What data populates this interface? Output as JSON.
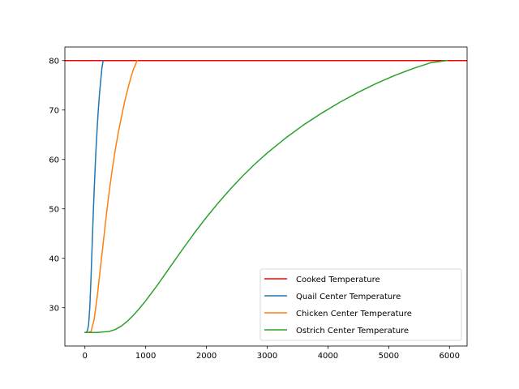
{
  "chart_data": {
    "type": "line",
    "title": "",
    "xlabel": "",
    "ylabel": "",
    "xlim": [
      -330,
      6290
    ],
    "ylim": [
      22.25,
      82.75
    ],
    "xticks": [
      0,
      1000,
      2000,
      3000,
      4000,
      5000,
      6000
    ],
    "yticks": [
      30,
      40,
      50,
      60,
      70,
      80
    ],
    "grid": false,
    "legend_position": "lower right",
    "hlines": [
      {
        "name": "Cooked Temperature",
        "y": 80,
        "color": "#ff0000"
      }
    ],
    "series": [
      {
        "name": "Quail Center Temperature",
        "color": "#1f77b4",
        "x": [
          0,
          20,
          40,
          60,
          80,
          100,
          120,
          140,
          160,
          180,
          200,
          220,
          240,
          260,
          280,
          300
        ],
        "y": [
          25,
          25,
          25.3,
          26.5,
          30,
          36,
          43,
          50,
          56,
          61.5,
          66,
          70,
          73.3,
          76,
          78.5,
          80
        ]
      },
      {
        "name": "Chicken Center Temperature",
        "color": "#ff7f0e",
        "x": [
          0,
          50,
          100,
          150,
          200,
          250,
          300,
          350,
          400,
          450,
          500,
          550,
          600,
          650,
          700,
          750,
          800,
          860
        ],
        "y": [
          25,
          25,
          25.2,
          27.5,
          32,
          37.5,
          43,
          48.5,
          53.5,
          58,
          62,
          65.5,
          68.5,
          71.5,
          74,
          76.3,
          78.3,
          80
        ]
      },
      {
        "name": "Ostrich Center Temperature",
        "color": "#2ca02c",
        "x": [
          0,
          200,
          400,
          500,
          600,
          700,
          800,
          900,
          1000,
          1200,
          1400,
          1600,
          1800,
          2000,
          2200,
          2400,
          2600,
          2800,
          3000,
          3300,
          3600,
          3900,
          4200,
          4500,
          4800,
          5100,
          5400,
          5700,
          5960
        ],
        "y": [
          25,
          25,
          25.2,
          25.6,
          26.3,
          27.3,
          28.5,
          29.9,
          31.4,
          34.7,
          38.2,
          41.7,
          45.1,
          48.3,
          51.3,
          54.1,
          56.7,
          59.1,
          61.3,
          64.3,
          67,
          69.4,
          71.6,
          73.6,
          75.4,
          77,
          78.4,
          79.6,
          80
        ]
      }
    ]
  }
}
